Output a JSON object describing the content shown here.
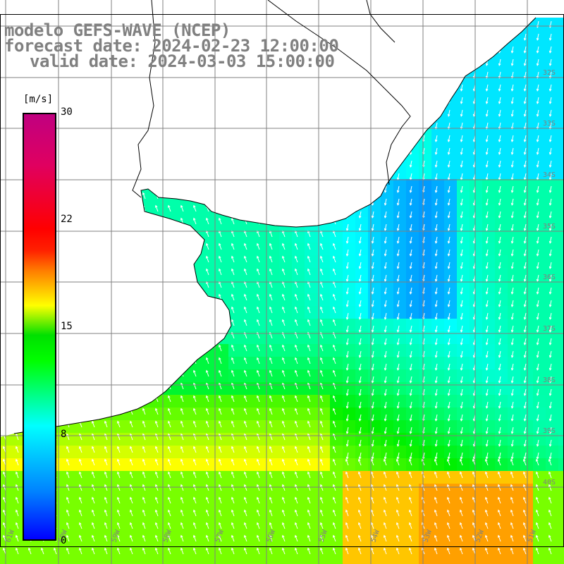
{
  "title": {
    "model": "modelo GEFS-WAVE (NCEP)",
    "forecast": "forecast date: 2024-02-23 12:00:00",
    "valid": "valid date: 2024-03-03 15:00:00"
  },
  "colorbar": {
    "unit": "[m/s]",
    "ticks": [
      "30",
      "22",
      "15",
      "8",
      "0"
    ],
    "tick_values": [
      30,
      22,
      15,
      8,
      0
    ],
    "range": [
      0,
      30
    ]
  },
  "map": {
    "lon_labels": [
      "61W",
      "60W",
      "59W",
      "58W",
      "57W",
      "56W",
      "55W",
      "54W",
      "53W",
      "52W",
      "51W"
    ],
    "lat_labels": [
      "32S",
      "33S",
      "34S",
      "35S",
      "36S",
      "37S",
      "38S",
      "39S",
      "40S"
    ],
    "field": "wind speed",
    "colors": {
      "land": "#ffffff",
      "coast": "#000000",
      "grid": "#808080",
      "arrows": "#ffffff",
      "labels": "#808080"
    }
  }
}
